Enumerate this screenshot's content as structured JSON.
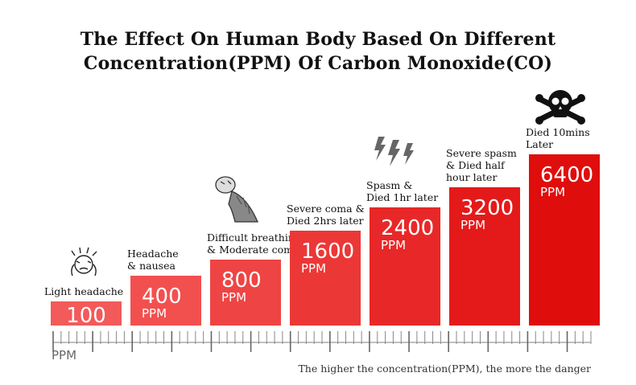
{
  "chart_data": {
    "type": "bar",
    "title_line1": "The Effect On Human Body Based On Different",
    "title_line2": "Concentration(PPM) Of Carbon Monoxide(CO)",
    "unit": "PPM",
    "axis_label": "PPM",
    "footnote": "The higher the concentration(PPM), the more the danger",
    "categories": [
      "100",
      "400",
      "800",
      "1600",
      "2400",
      "3200",
      "6400"
    ],
    "values": [
      100,
      400,
      800,
      1600,
      2400,
      3200,
      6400
    ],
    "descriptions": [
      [
        "Light headache"
      ],
      [
        "Headache",
        "& nausea"
      ],
      [
        "Difficult breathing",
        "& Moderate coma"
      ],
      [
        "Severe coma &",
        "Died 2hrs later"
      ],
      [
        "Spasm &",
        "Died 1hr later"
      ],
      [
        "Severe spasm",
        "& Died half",
        "hour later"
      ],
      [
        "Died 10mins",
        "Later"
      ]
    ],
    "icons": [
      "headache-icon",
      "",
      "dizzy-person-icon",
      "",
      "spasm-icon",
      "",
      "skull-crossbones-icon"
    ],
    "colors": [
      "#f35a5a",
      "#f2504f",
      "#ef4444",
      "#ec3737",
      "#e82828",
      "#e41a1a",
      "#e00d0d"
    ]
  }
}
